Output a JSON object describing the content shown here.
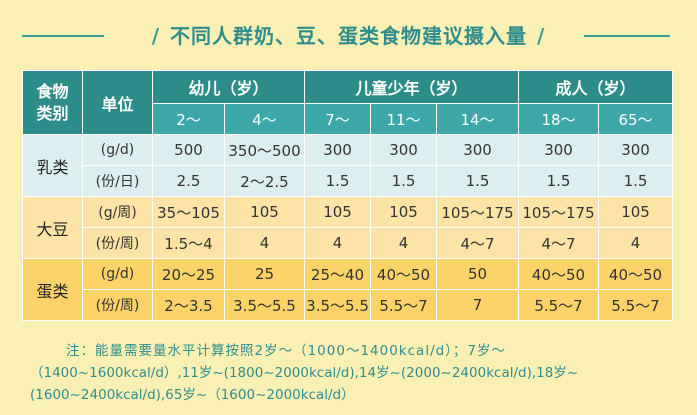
{
  "title": "不同人群奶、豆、蛋类食物建议摄入量",
  "decor": {
    "slash": "/"
  },
  "header": {
    "food_category": "食物类别",
    "unit": "单位",
    "groups": [
      {
        "label": "幼儿（岁）",
        "ages": [
          "2～",
          "4～"
        ]
      },
      {
        "label": "儿童少年（岁）",
        "ages": [
          "7～",
          "11～",
          "14～"
        ]
      },
      {
        "label": "成人（岁）",
        "ages": [
          "18～",
          "65～"
        ]
      }
    ]
  },
  "rows": [
    {
      "category": "乳类",
      "lines": [
        {
          "unit": "(g/d)",
          "values": [
            "500",
            "350～500",
            "300",
            "300",
            "300",
            "300",
            "300"
          ]
        },
        {
          "unit": "(份/日)",
          "values": [
            "2.5",
            "2～2.5",
            "1.5",
            "1.5",
            "1.5",
            "1.5",
            "1.5"
          ]
        }
      ]
    },
    {
      "category": "大豆",
      "lines": [
        {
          "unit": "(g/周)",
          "values": [
            "35～105",
            "105",
            "105",
            "105",
            "105～175",
            "105～175",
            "105"
          ]
        },
        {
          "unit": "(份/周)",
          "values": [
            "1.5～4",
            "4",
            "4",
            "4",
            "4～7",
            "4～7",
            "4"
          ]
        }
      ]
    },
    {
      "category": "蛋类",
      "lines": [
        {
          "unit": "(g/d)",
          "values": [
            "20～25",
            "25",
            "25～40",
            "40～50",
            "50",
            "40～50",
            "40～50"
          ]
        },
        {
          "unit": "(份/周)",
          "values": [
            "2～3.5",
            "3.5～5.5",
            "3.5～5.5",
            "5.5～7",
            "7",
            "5.5～7",
            "5.5～7"
          ]
        }
      ]
    }
  ],
  "note": {
    "line1": "注：能量需要量水平计算按照2岁～（1000～1400kcal/d）；7岁～",
    "line2": "（1400~1600kcal/d）,11岁~(1800~2000kcal/d),14岁~(2000~2400kcal/d),18岁~",
    "line3": "(1600~2400kcal/d),65岁~（1600~2000kcal/d）"
  },
  "colors": {
    "background": "#fbf0b4",
    "header_dark": "#2b8c89",
    "header_light": "#3ea7a8",
    "milk_row": "#dceff0",
    "soy_row": "#fde4a6",
    "egg_row": "#fbd368",
    "title_text": "#2f8e8d"
  }
}
